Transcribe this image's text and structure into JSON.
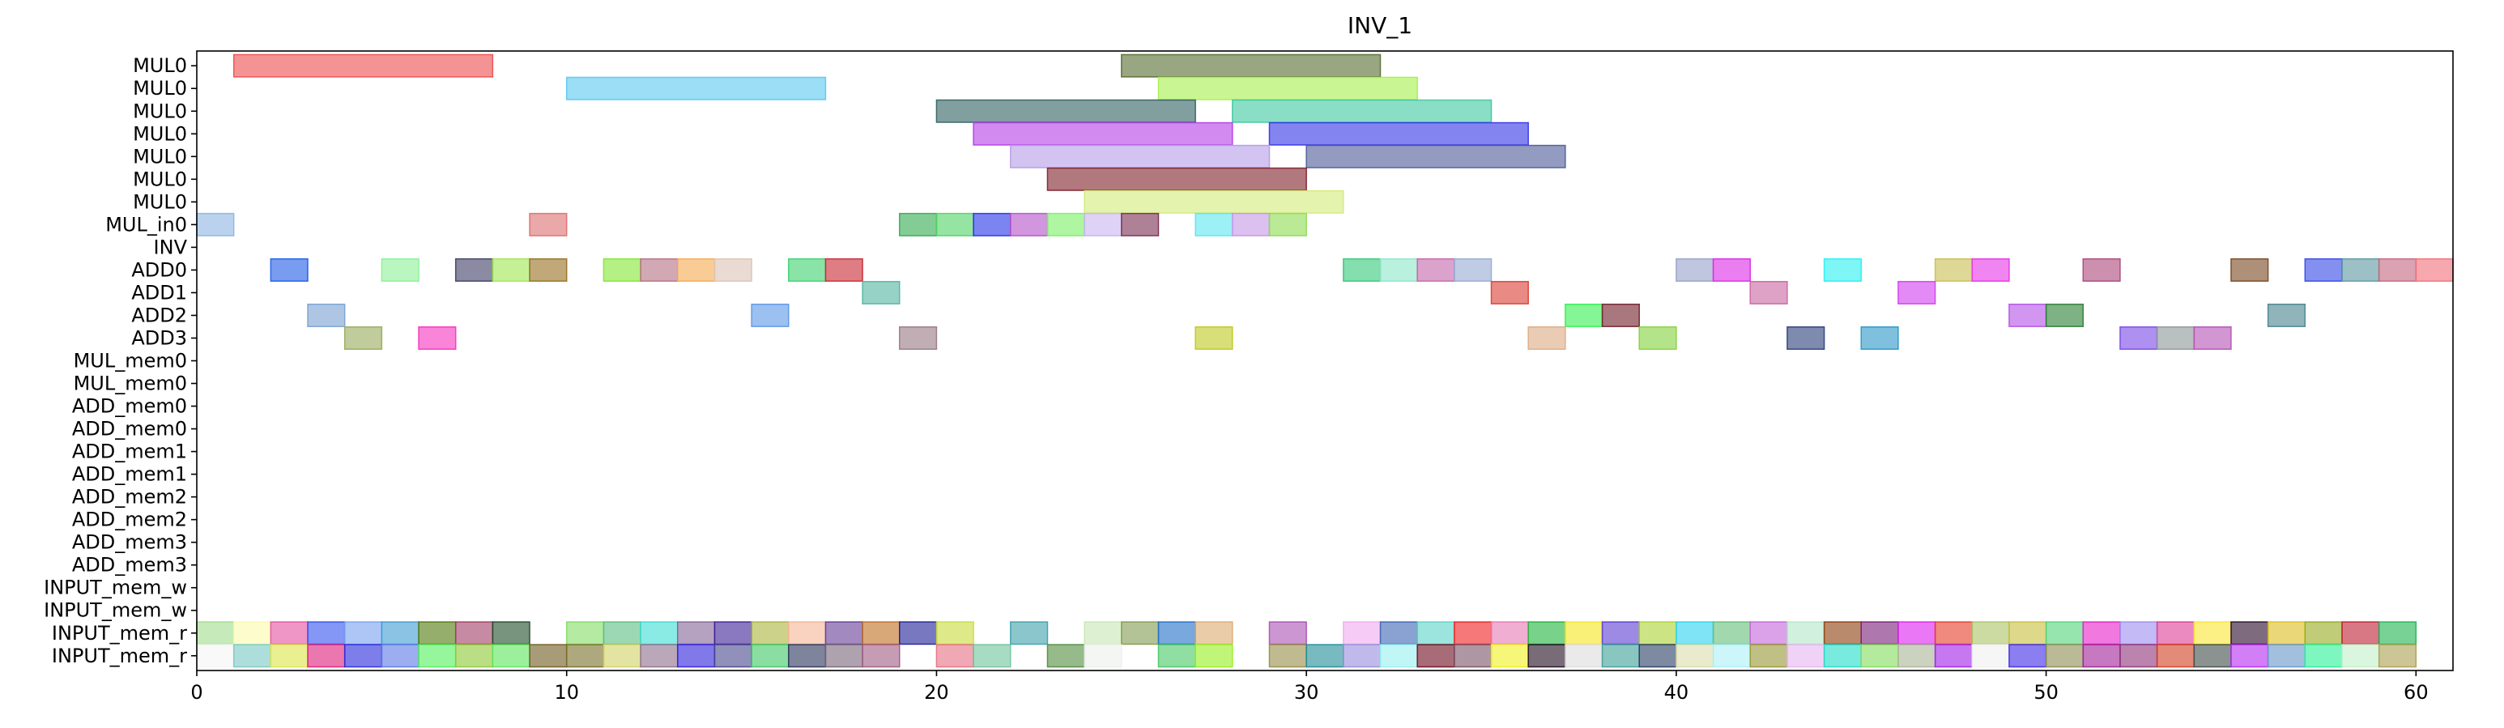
{
  "chart_data": {
    "type": "gantt",
    "title": "INV_1",
    "xlabel": "",
    "ylabel": "",
    "xlim": [
      0,
      61
    ],
    "xticks": [
      0,
      10,
      20,
      30,
      40,
      50,
      60
    ],
    "rows": [
      "MUL0",
      "MUL0",
      "MUL0",
      "MUL0",
      "MUL0",
      "MUL0",
      "MUL0",
      "MUL_in0",
      "INV",
      "ADD0",
      "ADD1",
      "ADD2",
      "ADD3",
      "MUL_mem0",
      "MUL_mem0",
      "ADD_mem0",
      "ADD_mem0",
      "ADD_mem1",
      "ADD_mem1",
      "ADD_mem2",
      "ADD_mem2",
      "ADD_mem3",
      "ADD_mem3",
      "INPUT_mem_w",
      "INPUT_mem_w",
      "INPUT_mem_r",
      "INPUT_mem_r"
    ],
    "tasks": [
      {
        "row": 0,
        "start": 1,
        "end": 8,
        "color": "#ec4b4b"
      },
      {
        "row": 0,
        "start": 25,
        "end": 32,
        "color": "#556b2f"
      },
      {
        "row": 1,
        "start": 10,
        "end": 17,
        "color": "#5ac8f0"
      },
      {
        "row": 1,
        "start": 26,
        "end": 33,
        "color": "#a5f04b"
      },
      {
        "row": 2,
        "start": 20,
        "end": 27,
        "color": "#2f5f5f"
      },
      {
        "row": 2,
        "start": 28,
        "end": 35,
        "color": "#3cc8a0"
      },
      {
        "row": 3,
        "start": 21,
        "end": 28,
        "color": "#b43ce6"
      },
      {
        "row": 3,
        "start": 29,
        "end": 36,
        "color": "#3232e6"
      },
      {
        "row": 4,
        "start": 22,
        "end": 29,
        "color": "#b49be6"
      },
      {
        "row": 4,
        "start": 30,
        "end": 37,
        "color": "#4b5a96"
      },
      {
        "row": 5,
        "start": 23,
        "end": 30,
        "color": "#7d1e28"
      },
      {
        "row": 6,
        "start": 24,
        "end": 31,
        "color": "#d2eb78"
      },
      {
        "row": 7,
        "start": 0,
        "end": 1,
        "color": "#8cb4e1"
      },
      {
        "row": 7,
        "start": 9,
        "end": 10,
        "color": "#dc6e6e"
      },
      {
        "row": 7,
        "start": 19,
        "end": 20,
        "color": "#32aa50"
      },
      {
        "row": 7,
        "start": 20,
        "end": 21,
        "color": "#50d264"
      },
      {
        "row": 7,
        "start": 21,
        "end": 22,
        "color": "#2332e6"
      },
      {
        "row": 7,
        "start": 22,
        "end": 23,
        "color": "#b450c8"
      },
      {
        "row": 7,
        "start": 23,
        "end": 24,
        "color": "#78f064"
      },
      {
        "row": 7,
        "start": 24,
        "end": 25,
        "color": "#c8b4f0"
      },
      {
        "row": 7,
        "start": 25,
        "end": 26,
        "color": "#782d50"
      },
      {
        "row": 7,
        "start": 27,
        "end": 28,
        "color": "#5ae6f0"
      },
      {
        "row": 7,
        "start": 28,
        "end": 29,
        "color": "#c396e6"
      },
      {
        "row": 7,
        "start": 29,
        "end": 30,
        "color": "#8cdc50"
      },
      {
        "row": 9,
        "start": 2,
        "end": 3,
        "color": "#1e5ae6"
      },
      {
        "row": 9,
        "start": 5,
        "end": 6,
        "color": "#8cf096"
      },
      {
        "row": 9,
        "start": 7,
        "end": 8,
        "color": "#3c3c64"
      },
      {
        "row": 9,
        "start": 8,
        "end": 9,
        "color": "#a0e650"
      },
      {
        "row": 9,
        "start": 9,
        "end": 10,
        "color": "#966e1e"
      },
      {
        "row": 9,
        "start": 11,
        "end": 12,
        "color": "#82e632"
      },
      {
        "row": 9,
        "start": 12,
        "end": 13,
        "color": "#b46e82"
      },
      {
        "row": 9,
        "start": 13,
        "end": 14,
        "color": "#f5aa50"
      },
      {
        "row": 9,
        "start": 14,
        "end": 15,
        "color": "#dcc3b4"
      },
      {
        "row": 9,
        "start": 16,
        "end": 17,
        "color": "#3cd26e"
      },
      {
        "row": 9,
        "start": 17,
        "end": 18,
        "color": "#c82832"
      },
      {
        "row": 9,
        "start": 31,
        "end": 32,
        "color": "#32c878"
      },
      {
        "row": 9,
        "start": 32,
        "end": 33,
        "color": "#8ce6c8"
      },
      {
        "row": 9,
        "start": 33,
        "end": 34,
        "color": "#c364aa"
      },
      {
        "row": 9,
        "start": 34,
        "end": 35,
        "color": "#96aad2"
      },
      {
        "row": 9,
        "start": 40,
        "end": 41,
        "color": "#96a0c8"
      },
      {
        "row": 9,
        "start": 41,
        "end": 42,
        "color": "#dc28e6"
      },
      {
        "row": 9,
        "start": 44,
        "end": 45,
        "color": "#28f0f0"
      },
      {
        "row": 9,
        "start": 47,
        "end": 48,
        "color": "#c8be50"
      },
      {
        "row": 9,
        "start": 48,
        "end": 49,
        "color": "#e632e6"
      },
      {
        "row": 9,
        "start": 51,
        "end": 52,
        "color": "#aa4678"
      },
      {
        "row": 9,
        "start": 55,
        "end": 56,
        "color": "#78461e"
      },
      {
        "row": 9,
        "start": 57,
        "end": 58,
        "color": "#3246e6"
      },
      {
        "row": 9,
        "start": 58,
        "end": 59,
        "color": "#5a96a0"
      },
      {
        "row": 9,
        "start": 59,
        "end": 60,
        "color": "#c3647d"
      },
      {
        "row": 9,
        "start": 60,
        "end": 61,
        "color": "#f06e78"
      },
      {
        "row": 10,
        "start": 18,
        "end": 19,
        "color": "#50b4a0"
      },
      {
        "row": 10,
        "start": 35,
        "end": 36,
        "color": "#dc3c32"
      },
      {
        "row": 10,
        "start": 42,
        "end": 43,
        "color": "#c864a0"
      },
      {
        "row": 10,
        "start": 46,
        "end": 47,
        "color": "#d23cf0"
      },
      {
        "row": 11,
        "start": 3,
        "end": 4,
        "color": "#78a0d2"
      },
      {
        "row": 11,
        "start": 15,
        "end": 16,
        "color": "#5a96e6"
      },
      {
        "row": 11,
        "start": 37,
        "end": 38,
        "color": "#32f050"
      },
      {
        "row": 11,
        "start": 38,
        "end": 39,
        "color": "#6e1e28"
      },
      {
        "row": 11,
        "start": 49,
        "end": 50,
        "color": "#b450e6"
      },
      {
        "row": 11,
        "start": 50,
        "end": 51,
        "color": "#287d32"
      },
      {
        "row": 11,
        "start": 56,
        "end": 57,
        "color": "#46828c"
      },
      {
        "row": 12,
        "start": 4,
        "end": 5,
        "color": "#96aa5a"
      },
      {
        "row": 12,
        "start": 6,
        "end": 7,
        "color": "#f532be"
      },
      {
        "row": 12,
        "start": 19,
        "end": 20,
        "color": "#967882"
      },
      {
        "row": 12,
        "start": 27,
        "end": 28,
        "color": "#bec81e"
      },
      {
        "row": 12,
        "start": 36,
        "end": 37,
        "color": "#dcaa82"
      },
      {
        "row": 12,
        "start": 39,
        "end": 40,
        "color": "#82d23c"
      },
      {
        "row": 12,
        "start": 43,
        "end": 44,
        "color": "#283c78"
      },
      {
        "row": 12,
        "start": 45,
        "end": 46,
        "color": "#2896c8"
      },
      {
        "row": 12,
        "start": 52,
        "end": 53,
        "color": "#7846e6"
      },
      {
        "row": 12,
        "start": 53,
        "end": 54,
        "color": "#8c9696"
      },
      {
        "row": 12,
        "start": 54,
        "end": 55,
        "color": "#b450b4"
      },
      {
        "row": 25,
        "start": 0,
        "end": 1,
        "color": "#a0dc8c"
      },
      {
        "row": 25,
        "start": 1,
        "end": 2,
        "color": "#fafaaa"
      },
      {
        "row": 25,
        "start": 2,
        "end": 3,
        "color": "#e650a0"
      },
      {
        "row": 25,
        "start": 3,
        "end": 4,
        "color": "#3250f0"
      },
      {
        "row": 25,
        "start": 4,
        "end": 5,
        "color": "#78a0f0"
      },
      {
        "row": 25,
        "start": 5,
        "end": 6,
        "color": "#3c9bd2"
      },
      {
        "row": 25,
        "start": 6,
        "end": 7,
        "color": "#50780a"
      },
      {
        "row": 25,
        "start": 7,
        "end": 8,
        "color": "#a03c64"
      },
      {
        "row": 25,
        "start": 8,
        "end": 9,
        "color": "#1e4b28"
      },
      {
        "row": 25,
        "start": 10,
        "end": 11,
        "color": "#82dc64"
      },
      {
        "row": 25,
        "start": 11,
        "end": 12,
        "color": "#5abe82"
      },
      {
        "row": 25,
        "start": 12,
        "end": 13,
        "color": "#3cdcd2"
      },
      {
        "row": 25,
        "start": 13,
        "end": 14,
        "color": "#826496"
      },
      {
        "row": 25,
        "start": 14,
        "end": 15,
        "color": "#3c1e96"
      },
      {
        "row": 25,
        "start": 15,
        "end": 16,
        "color": "#aab43c"
      },
      {
        "row": 25,
        "start": 16,
        "end": 17,
        "color": "#f5b496"
      },
      {
        "row": 25,
        "start": 17,
        "end": 18,
        "color": "#643c96"
      },
      {
        "row": 25,
        "start": 18,
        "end": 19,
        "color": "#be6e1e"
      },
      {
        "row": 25,
        "start": 19,
        "end": 20,
        "color": "#1e1e96"
      },
      {
        "row": 25,
        "start": 20,
        "end": 21,
        "color": "#c8dc3c"
      },
      {
        "row": 25,
        "start": 22,
        "end": 23,
        "color": "#3ca0aa"
      },
      {
        "row": 25,
        "start": 24,
        "end": 25,
        "color": "#c8e6b4"
      },
      {
        "row": 25,
        "start": 25,
        "end": 26,
        "color": "#829b50"
      },
      {
        "row": 25,
        "start": 26,
        "end": 27,
        "color": "#1e6ec8"
      },
      {
        "row": 25,
        "start": 27,
        "end": 28,
        "color": "#dcaa6e"
      },
      {
        "row": 25,
        "start": 29,
        "end": 30,
        "color": "#aa50b4"
      },
      {
        "row": 25,
        "start": 31,
        "end": 32,
        "color": "#f0aaf0"
      },
      {
        "row": 25,
        "start": 32,
        "end": 33,
        "color": "#3c64b4"
      },
      {
        "row": 25,
        "start": 33,
        "end": 34,
        "color": "#5ad2c8"
      },
      {
        "row": 25,
        "start": 34,
        "end": 35,
        "color": "#f01e1e"
      },
      {
        "row": 25,
        "start": 35,
        "end": 36,
        "color": "#e678b4"
      },
      {
        "row": 25,
        "start": 36,
        "end": 37,
        "color": "#1eb43c"
      },
      {
        "row": 25,
        "start": 37,
        "end": 38,
        "color": "#f5e61e"
      },
      {
        "row": 25,
        "start": 38,
        "end": 39,
        "color": "#5a3cd2"
      },
      {
        "row": 25,
        "start": 39,
        "end": 40,
        "color": "#aad232"
      },
      {
        "row": 25,
        "start": 40,
        "end": 41,
        "color": "#28d2f0"
      },
      {
        "row": 25,
        "start": 41,
        "end": 42,
        "color": "#64be78"
      },
      {
        "row": 25,
        "start": 42,
        "end": 43,
        "color": "#c364dc"
      },
      {
        "row": 25,
        "start": 43,
        "end": 44,
        "color": "#b4e6c8"
      },
      {
        "row": 25,
        "start": 44,
        "end": 45,
        "color": "#8c3c0a"
      },
      {
        "row": 25,
        "start": 45,
        "end": 46,
        "color": "#781e78"
      },
      {
        "row": 25,
        "start": 46,
        "end": 47,
        "color": "#dc1ef0"
      },
      {
        "row": 25,
        "start": 47,
        "end": 48,
        "color": "#e63c28"
      },
      {
        "row": 25,
        "start": 48,
        "end": 49,
        "color": "#aac364"
      },
      {
        "row": 25,
        "start": 49,
        "end": 50,
        "color": "#c8be3c"
      },
      {
        "row": 25,
        "start": 50,
        "end": 51,
        "color": "#50d278"
      },
      {
        "row": 25,
        "start": 51,
        "end": 52,
        "color": "#e61ec8"
      },
      {
        "row": 25,
        "start": 52,
        "end": 53,
        "color": "#9b8cf0"
      },
      {
        "row": 25,
        "start": 53,
        "end": 54,
        "color": "#dc3c96"
      },
      {
        "row": 25,
        "start": 54,
        "end": 55,
        "color": "#fae632"
      },
      {
        "row": 25,
        "start": 55,
        "end": 56,
        "color": "#280a28"
      },
      {
        "row": 25,
        "start": 56,
        "end": 57,
        "color": "#dcbe1e"
      },
      {
        "row": 25,
        "start": 57,
        "end": 58,
        "color": "#96aa1e"
      },
      {
        "row": 25,
        "start": 58,
        "end": 59,
        "color": "#be1e32"
      },
      {
        "row": 25,
        "start": 59,
        "end": 60,
        "color": "#1eb450"
      },
      {
        "row": 26,
        "start": 0,
        "end": 1,
        "color": "#f5f5f5"
      },
      {
        "row": 26,
        "start": 1,
        "end": 2,
        "color": "#78c8c3"
      },
      {
        "row": 26,
        "start": 2,
        "end": 3,
        "color": "#dce646"
      },
      {
        "row": 26,
        "start": 3,
        "end": 4,
        "color": "#dc1e78"
      },
      {
        "row": 26,
        "start": 4,
        "end": 5,
        "color": "#2828dc"
      },
      {
        "row": 26,
        "start": 5,
        "end": 6,
        "color": "#5a78e6"
      },
      {
        "row": 26,
        "start": 6,
        "end": 7,
        "color": "#50f05a"
      },
      {
        "row": 26,
        "start": 7,
        "end": 8,
        "color": "#8cc832"
      },
      {
        "row": 26,
        "start": 8,
        "end": 9,
        "color": "#5ae65a"
      },
      {
        "row": 26,
        "start": 9,
        "end": 10,
        "color": "#6e5a1e"
      },
      {
        "row": 26,
        "start": 10,
        "end": 11,
        "color": "#786e28"
      },
      {
        "row": 26,
        "start": 11,
        "end": 12,
        "color": "#d2d264"
      },
      {
        "row": 26,
        "start": 12,
        "end": 13,
        "color": "#8c6e8c"
      },
      {
        "row": 26,
        "start": 13,
        "end": 14,
        "color": "#2d1edc"
      },
      {
        "row": 26,
        "start": 14,
        "end": 15,
        "color": "#46468c"
      },
      {
        "row": 26,
        "start": 15,
        "end": 16,
        "color": "#3cc864"
      },
      {
        "row": 26,
        "start": 16,
        "end": 17,
        "color": "#28325a"
      },
      {
        "row": 26,
        "start": 17,
        "end": 18,
        "color": "#786478"
      },
      {
        "row": 26,
        "start": 18,
        "end": 19,
        "color": "#a05a82"
      },
      {
        "row": 26,
        "start": 20,
        "end": 21,
        "color": "#e66e82"
      },
      {
        "row": 26,
        "start": 21,
        "end": 22,
        "color": "#6ec39b"
      },
      {
        "row": 26,
        "start": 23,
        "end": 24,
        "color": "#508c3c"
      },
      {
        "row": 26,
        "start": 24,
        "end": 25,
        "color": "#ebf0eb"
      },
      {
        "row": 26,
        "start": 26,
        "end": 27,
        "color": "#46c864"
      },
      {
        "row": 26,
        "start": 27,
        "end": 28,
        "color": "#96f01e"
      },
      {
        "row": 26,
        "start": 29,
        "end": 30,
        "color": "#968c46"
      },
      {
        "row": 26,
        "start": 30,
        "end": 31,
        "color": "#1e8c96"
      },
      {
        "row": 26,
        "start": 31,
        "end": 32,
        "color": "#968cdc"
      },
      {
        "row": 26,
        "start": 32,
        "end": 33,
        "color": "#96f0f0"
      },
      {
        "row": 26,
        "start": 33,
        "end": 34,
        "color": "#6e0a1e"
      },
      {
        "row": 26,
        "start": 34,
        "end": 35,
        "color": "#785064"
      },
      {
        "row": 26,
        "start": 35,
        "end": 36,
        "color": "#f0f01e"
      },
      {
        "row": 26,
        "start": 36,
        "end": 37,
        "color": "#1e0a1e"
      },
      {
        "row": 26,
        "start": 37,
        "end": 38,
        "color": "#dcdcdc"
      },
      {
        "row": 26,
        "start": 38,
        "end": 39,
        "color": "#3ca096"
      },
      {
        "row": 26,
        "start": 39,
        "end": 40,
        "color": "#283c64"
      },
      {
        "row": 26,
        "start": 40,
        "end": 41,
        "color": "#dcdcaa"
      },
      {
        "row": 26,
        "start": 41,
        "end": 42,
        "color": "#aaf0f5"
      },
      {
        "row": 26,
        "start": 42,
        "end": 43,
        "color": "#969632"
      },
      {
        "row": 26,
        "start": 43,
        "end": 44,
        "color": "#e6b4f0"
      },
      {
        "row": 26,
        "start": 44,
        "end": 45,
        "color": "#1edcc8"
      },
      {
        "row": 26,
        "start": 45,
        "end": 46,
        "color": "#82dc5a"
      },
      {
        "row": 26,
        "start": 46,
        "end": 47,
        "color": "#aab496"
      },
      {
        "row": 26,
        "start": 47,
        "end": 48,
        "color": "#a01ee6"
      },
      {
        "row": 26,
        "start": 48,
        "end": 49,
        "color": "#f0f0f0"
      },
      {
        "row": 26,
        "start": 49,
        "end": 50,
        "color": "#3c28e6"
      },
      {
        "row": 26,
        "start": 50,
        "end": 51,
        "color": "#8c8c50"
      },
      {
        "row": 26,
        "start": 51,
        "end": 52,
        "color": "#a01e96"
      },
      {
        "row": 26,
        "start": 52,
        "end": 53,
        "color": "#8c3278"
      },
      {
        "row": 26,
        "start": 53,
        "end": 54,
        "color": "#d23c1e"
      },
      {
        "row": 26,
        "start": 54,
        "end": 55,
        "color": "#3c4b46"
      },
      {
        "row": 26,
        "start": 55,
        "end": 56,
        "color": "#b428f0"
      },
      {
        "row": 26,
        "start": 56,
        "end": 57,
        "color": "#6496c8"
      },
      {
        "row": 26,
        "start": 57,
        "end": 58,
        "color": "#28f096"
      },
      {
        "row": 26,
        "start": 58,
        "end": 59,
        "color": "#c3f0c8"
      },
      {
        "row": 26,
        "start": 59,
        "end": 60,
        "color": "#aaa050"
      }
    ]
  }
}
